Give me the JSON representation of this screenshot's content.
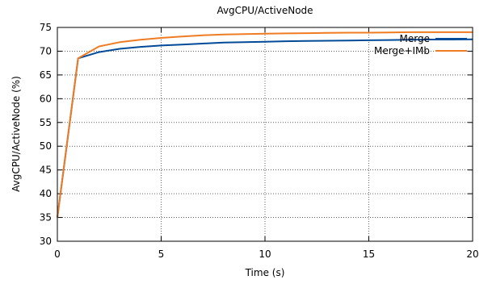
{
  "chart_data": {
    "type": "line",
    "title": "AvgCPU/ActiveNode",
    "xlabel": "Time (s)",
    "ylabel": "AvgCPU/ActiveNode (%)",
    "xlim": [
      0,
      20
    ],
    "ylim": [
      30,
      75
    ],
    "xticks": [
      0,
      5,
      10,
      15,
      20
    ],
    "yticks": [
      30,
      35,
      40,
      45,
      50,
      55,
      60,
      65,
      70,
      75
    ],
    "grid": true,
    "legend_position": "top-right",
    "series": [
      {
        "name": "Merge",
        "color": "#004a97",
        "x": [
          0,
          1,
          2,
          3,
          4,
          5,
          6,
          7,
          8,
          9,
          10,
          11,
          12,
          13,
          14,
          15,
          16,
          17,
          18,
          19,
          20
        ],
        "y": [
          35,
          68.5,
          69.8,
          70.5,
          70.9,
          71.2,
          71.4,
          71.6,
          71.8,
          71.9,
          72.0,
          72.1,
          72.15,
          72.2,
          72.25,
          72.3,
          72.35,
          72.4,
          72.45,
          72.45,
          72.5
        ]
      },
      {
        "name": "Merge+IMb",
        "color": "#ef7c22",
        "x": [
          0,
          1,
          2,
          3,
          4,
          5,
          6,
          7,
          8,
          9,
          10,
          11,
          12,
          13,
          14,
          15,
          16,
          17,
          18,
          19,
          20
        ],
        "y": [
          35,
          68.5,
          71.0,
          71.9,
          72.4,
          72.8,
          73.1,
          73.35,
          73.5,
          73.6,
          73.7,
          73.75,
          73.8,
          73.85,
          73.9,
          73.9,
          73.95,
          74.0,
          74.0,
          74.0,
          74.0
        ]
      }
    ]
  }
}
